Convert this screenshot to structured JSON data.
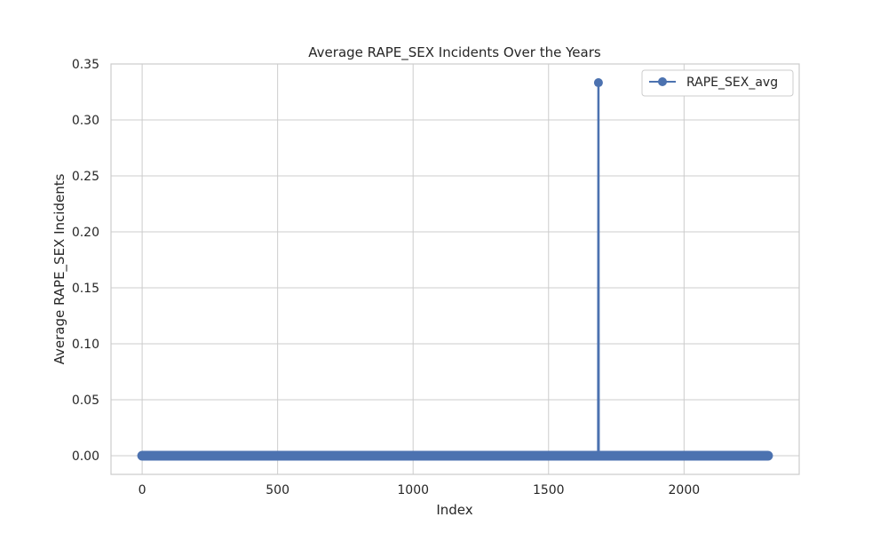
{
  "chart_data": {
    "type": "line",
    "title": "Average RAPE_SEX Incidents Over the Years",
    "xlabel": "Index",
    "ylabel": "Average RAPE_SEX Incidents",
    "xlim": [
      -115,
      2425
    ],
    "ylim": [
      -0.0167,
      0.35
    ],
    "x_ticks": [
      0,
      500,
      1000,
      1500,
      2000
    ],
    "x_tick_labels": [
      "0",
      "500",
      "1000",
      "1500",
      "2000"
    ],
    "y_ticks": [
      0.0,
      0.05,
      0.1,
      0.15,
      0.2,
      0.25,
      0.3,
      0.35
    ],
    "y_tick_labels": [
      "0.00",
      "0.05",
      "0.10",
      "0.15",
      "0.20",
      "0.25",
      "0.30",
      "0.35"
    ],
    "grid": true,
    "legend_position": "top-right",
    "series": [
      {
        "name": "RAPE_SEX_avg",
        "color": "#4c72b0",
        "marker": "circle",
        "x_range": [
          0,
          2310
        ],
        "baseline_value": 0.0,
        "spikes": [
          {
            "x": 1684,
            "y": 0.3333
          }
        ]
      }
    ]
  }
}
